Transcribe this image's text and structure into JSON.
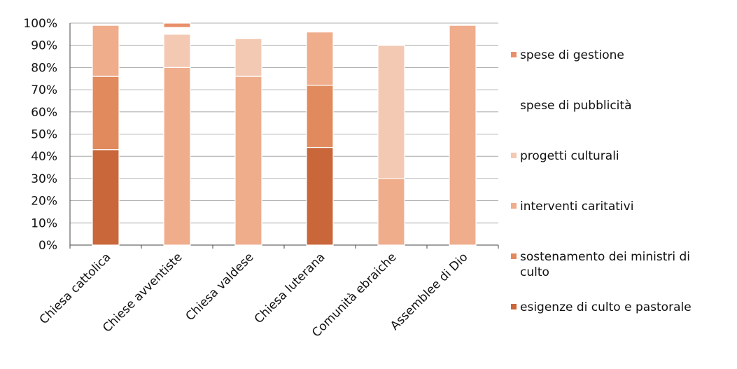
{
  "colors": {
    "esigenze": "#c9663a",
    "sostentamento": "#e08a5e",
    "interventi": "#efad8c",
    "progetti": "#f3c9b4",
    "pubblicita": "#ffffff",
    "gestione": "#e8906a",
    "grid": "#999999",
    "axis": "#444444"
  },
  "chart_data": {
    "type": "bar",
    "stacked": true,
    "categories": [
      "Chiesa cattolica",
      "Chiese avventiste",
      "Chiesa valdese",
      "Chiesa luterana",
      "Comunità ebraiche",
      "Assemblee di Dio"
    ],
    "ytick_labels": [
      "0%",
      "10%",
      "20%",
      "30%",
      "40%",
      "50%",
      "60%",
      "70%",
      "80%",
      "90%",
      "100%"
    ],
    "ylim": [
      0,
      100
    ],
    "grid": true,
    "legend_position": "right",
    "series": [
      {
        "name": "esigenze di culto e pastorale",
        "color_key": "esigenze",
        "values": [
          43,
          0,
          0,
          44,
          0,
          0
        ]
      },
      {
        "name": "sostenamento dei ministri di culto",
        "color_key": "sostentamento",
        "values": [
          33,
          0,
          0,
          28,
          0,
          0
        ]
      },
      {
        "name": "interventi caritativi",
        "color_key": "interventi",
        "values": [
          23,
          80,
          76,
          24,
          30,
          99
        ]
      },
      {
        "name": "progetti culturali",
        "color_key": "progetti",
        "values": [
          0,
          15,
          17,
          0,
          60,
          0
        ]
      },
      {
        "name": "spese di pubblicità",
        "color_key": "pubblicita",
        "values": [
          0,
          3,
          0,
          0,
          9,
          0
        ]
      },
      {
        "name": "spese di gestione",
        "color_key": "gestione",
        "values": [
          0,
          2,
          0,
          0,
          0,
          0
        ]
      }
    ],
    "legend_order": [
      5,
      4,
      3,
      2,
      1,
      0
    ]
  }
}
